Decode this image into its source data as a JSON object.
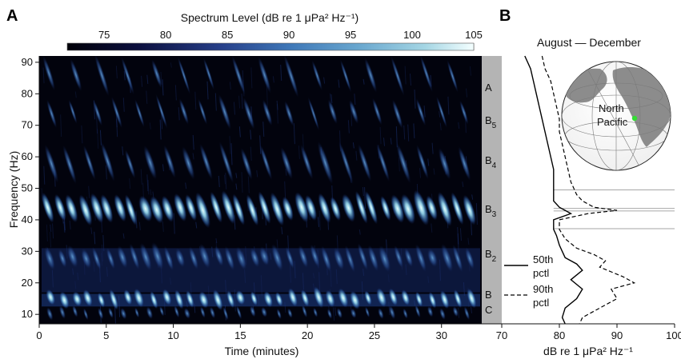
{
  "panel_a": {
    "letter": "A",
    "colorbar": {
      "title": "Spectrum Level (dB re 1 μPa² Hz⁻¹)",
      "ticks": [
        "75",
        "80",
        "85",
        "90",
        "95",
        "100",
        "105"
      ],
      "range": [
        72,
        105
      ]
    },
    "y_axis_label": "Frequency (Hz)",
    "y_ticks": [
      "10",
      "20",
      "30",
      "40",
      "50",
      "60",
      "70",
      "80",
      "90"
    ],
    "x_axis_label": "Time (minutes)",
    "x_ticks": [
      "0",
      "5",
      "10",
      "15",
      "20",
      "25",
      "30"
    ],
    "band_labels": [
      {
        "main": "A",
        "sub": ""
      },
      {
        "main": "B",
        "sub": "5"
      },
      {
        "main": "B",
        "sub": "4"
      },
      {
        "main": "B",
        "sub": "3"
      },
      {
        "main": "B",
        "sub": "2"
      },
      {
        "main": "B",
        "sub": ""
      },
      {
        "main": "C",
        "sub": ""
      }
    ]
  },
  "panel_b": {
    "letter": "B",
    "title": "August — December",
    "x_ticks": [
      "70",
      "80",
      "90",
      "100"
    ],
    "x_axis_label": "dB re 1 μPa² Hz⁻¹",
    "legend": [
      {
        "label_line1": "50th",
        "label_line2": "pctl",
        "style": "solid"
      },
      {
        "label_line1": "90th",
        "label_line2": "pctl",
        "style": "dashed"
      }
    ],
    "map_label_line1": "North",
    "map_label_line2": "Pacific",
    "map_marker_color": "#33dd33"
  },
  "chart_data": [
    {
      "type": "heatmap",
      "title": "Spectrum Level (dB re 1 μPa² Hz⁻¹)",
      "xlabel": "Time (minutes)",
      "ylabel": "Frequency (Hz)",
      "xlim": [
        0,
        33
      ],
      "ylim": [
        7,
        92
      ],
      "color_range": [
        72,
        105
      ]
    },
    {
      "type": "line",
      "title": "August — December",
      "xlabel": "dB re 1 μPa² Hz⁻¹",
      "ylabel": "Frequency (Hz)",
      "xlim": [
        70,
        100
      ],
      "ylim": [
        7,
        92
      ],
      "series": [
        {
          "name": "50th pctl",
          "x": [
            74,
            75,
            75.5,
            76,
            76.5,
            77,
            77.5,
            78,
            78.5,
            79,
            79,
            79,
            79,
            80,
            81,
            82,
            79,
            79,
            79.5,
            80,
            80.5,
            81,
            83,
            84,
            82,
            84,
            83,
            81,
            80.5,
            81
          ],
          "y": [
            92,
            88,
            84,
            80,
            76,
            72,
            68,
            64,
            60,
            56,
            52,
            48,
            46,
            44,
            43,
            42,
            40,
            37,
            35,
            32,
            30,
            28,
            26,
            24,
            21,
            18,
            15,
            12,
            9,
            7
          ]
        },
        {
          "name": "90th pctl",
          "x": [
            77,
            77.5,
            78.5,
            79,
            79.5,
            80,
            80,
            80.5,
            81,
            81.5,
            82,
            83,
            84,
            86,
            90,
            85,
            80,
            80,
            81,
            83,
            86,
            88,
            87,
            91,
            93,
            89,
            90,
            87,
            84,
            83.5
          ],
          "y": [
            92,
            88,
            84,
            80,
            76,
            72,
            68,
            64,
            60,
            56,
            52,
            48,
            46,
            44,
            43,
            42,
            40,
            37,
            34,
            31,
            29,
            27,
            25,
            22,
            20,
            18,
            15,
            12,
            9,
            7
          ]
        }
      ]
    }
  ]
}
